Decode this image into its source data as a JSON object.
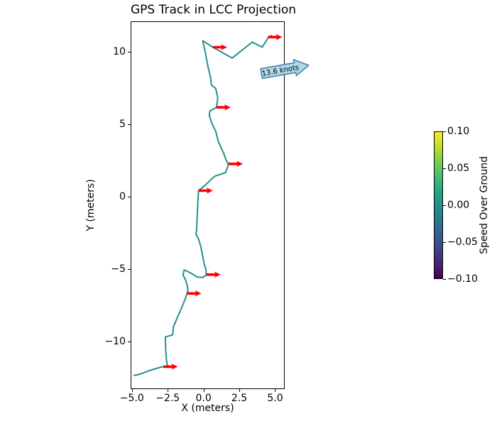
{
  "chart_data": {
    "type": "line",
    "title": "GPS Track in LCC Projection",
    "xlabel": "X (meters)",
    "ylabel": "Y (meters)",
    "xlim": [
      -5.09,
      5.67
    ],
    "ylim": [
      -13.3,
      12.09
    ],
    "grid": false,
    "legend": "none",
    "xticks": {
      "values": [
        -5.0,
        -2.5,
        0.0,
        2.5,
        5.0
      ],
      "labels": [
        "−5.0",
        "−2.5",
        "0.0",
        "2.5",
        "5.0"
      ]
    },
    "yticks": {
      "values": [
        10,
        5,
        0,
        -5,
        -10
      ],
      "labels": [
        "10",
        "5",
        "0",
        "−5",
        "−10"
      ]
    },
    "track": {
      "name": "GPS track",
      "color": "#21918c",
      "linewidth": 2,
      "points": [
        [
          -4.85,
          -12.35
        ],
        [
          -4.55,
          -12.3
        ],
        [
          -4.25,
          -12.2
        ],
        [
          -3.85,
          -12.05
        ],
        [
          -3.55,
          -11.95
        ],
        [
          -3.05,
          -11.8
        ],
        [
          -2.8,
          -11.75
        ],
        [
          -2.52,
          -11.67
        ],
        [
          -2.57,
          -11.42
        ],
        [
          -2.62,
          -10.95
        ],
        [
          -2.65,
          -10.3
        ],
        [
          -2.66,
          -9.7
        ],
        [
          -2.16,
          -9.56
        ],
        [
          -2.1,
          -9.0
        ],
        [
          -1.82,
          -8.35
        ],
        [
          -1.56,
          -7.76
        ],
        [
          -1.31,
          -7.17
        ],
        [
          -1.15,
          -6.7
        ],
        [
          -1.09,
          -6.5
        ],
        [
          -1.14,
          -6.15
        ],
        [
          -1.24,
          -5.8
        ],
        [
          -1.43,
          -5.42
        ],
        [
          -1.35,
          -5.07
        ],
        [
          -0.94,
          -5.26
        ],
        [
          -0.44,
          -5.56
        ],
        [
          -0.05,
          -5.6
        ],
        [
          0.2,
          -5.4
        ],
        [
          0.16,
          -5.0
        ],
        [
          0.05,
          -4.7
        ],
        [
          -0.04,
          -4.2
        ],
        [
          -0.19,
          -3.45
        ],
        [
          -0.34,
          -2.96
        ],
        [
          -0.53,
          -2.6
        ],
        [
          -0.49,
          -2.36
        ],
        [
          -0.4,
          -0.45
        ],
        [
          -0.35,
          0.4
        ],
        [
          0.15,
          0.8
        ],
        [
          0.5,
          1.15
        ],
        [
          0.8,
          1.4
        ],
        [
          1.55,
          1.65
        ],
        [
          1.75,
          2.25
        ],
        [
          1.6,
          2.45
        ],
        [
          1.4,
          3.0
        ],
        [
          1.05,
          3.75
        ],
        [
          0.85,
          4.5
        ],
        [
          0.6,
          5.0
        ],
        [
          0.4,
          5.6
        ],
        [
          0.45,
          5.9
        ],
        [
          0.9,
          6.15
        ],
        [
          1.0,
          6.8
        ],
        [
          0.85,
          7.45
        ],
        [
          0.55,
          7.7
        ],
        [
          0.5,
          8.2
        ],
        [
          0.3,
          9.0
        ],
        [
          0.15,
          9.8
        ],
        [
          -0.05,
          10.75
        ],
        [
          0.65,
          10.3
        ],
        [
          2.0,
          9.55
        ],
        [
          3.4,
          10.65
        ],
        [
          4.1,
          10.3
        ],
        [
          4.55,
          11.0
        ],
        [
          4.75,
          11.1
        ]
      ]
    },
    "quiver": {
      "name": "heading arrows",
      "color": "#ff0000",
      "u": 1.0,
      "v": 0.0,
      "points": [
        [
          4.5,
          11.0
        ],
        [
          0.65,
          10.3
        ],
        [
          0.9,
          6.15
        ],
        [
          1.75,
          2.25
        ],
        [
          -0.35,
          0.4
        ],
        [
          0.2,
          -5.4
        ],
        [
          -1.15,
          -6.7
        ],
        [
          -2.8,
          -11.75
        ]
      ]
    },
    "annotation": {
      "text": "13.6 knots",
      "x": 3.88,
      "y": 9.1,
      "rotation_deg": -10,
      "facecolor": "#add8e6",
      "edgecolor": "#4682b4",
      "shape": "right-arrow-box"
    },
    "colorbar": {
      "label": "Speed Over Ground",
      "cmap": "viridis",
      "vmin": -0.1,
      "vmax": 0.1,
      "tick_values": [
        0.1,
        0.05,
        0.0,
        -0.05,
        -0.1
      ],
      "tick_labels": [
        "0.10",
        "0.05",
        "0.00",
        "−0.05",
        "−0.10"
      ]
    }
  }
}
